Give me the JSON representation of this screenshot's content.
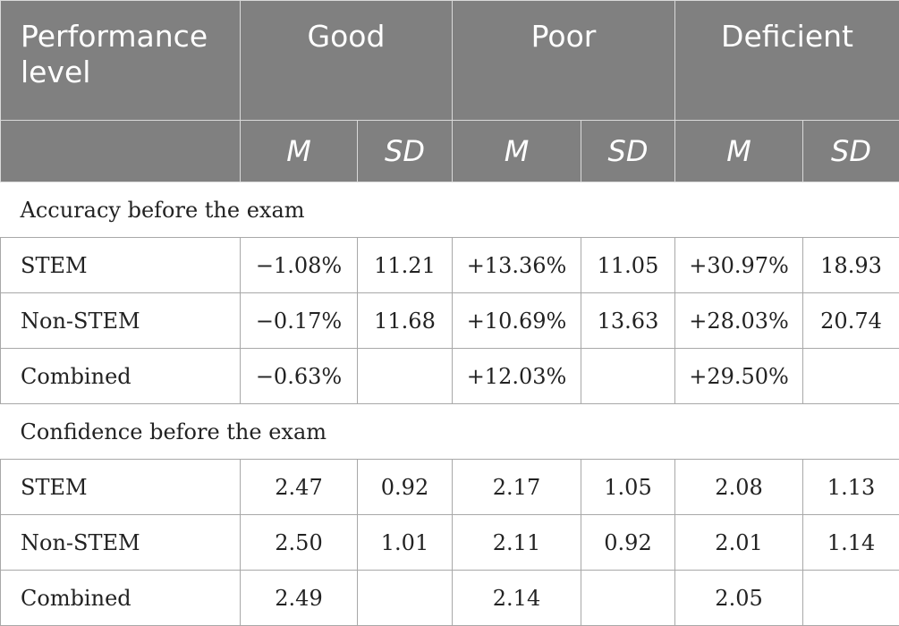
{
  "header": {
    "performance_level": "Performance level",
    "groups": [
      "Good",
      "Poor",
      "Deficient"
    ],
    "subheads": [
      "M",
      "SD",
      "M",
      "SD",
      "M",
      "SD"
    ]
  },
  "sections": [
    {
      "title": "Accuracy before the exam",
      "rows": [
        {
          "label": "STEM",
          "values": [
            "−1.08%",
            "11.21",
            "+13.36%",
            "11.05",
            "+30.97%",
            "18.93"
          ]
        },
        {
          "label": "Non-STEM",
          "values": [
            "−0.17%",
            "11.68",
            "+10.69%",
            "13.63",
            "+28.03%",
            "20.74"
          ]
        },
        {
          "label": "Combined",
          "values": [
            "−0.63%",
            "",
            "+12.03%",
            "",
            "+29.50%",
            ""
          ]
        }
      ]
    },
    {
      "title": "Confidence before the exam",
      "rows": [
        {
          "label": "STEM",
          "values": [
            "2.47",
            "0.92",
            "2.17",
            "1.05",
            "2.08",
            "1.13"
          ]
        },
        {
          "label": "Non-STEM",
          "values": [
            "2.50",
            "1.01",
            "2.11",
            "0.92",
            "2.01",
            "1.14"
          ]
        },
        {
          "label": "Combined",
          "values": [
            "2.49",
            "",
            "2.14",
            "",
            "2.05",
            ""
          ]
        }
      ]
    }
  ]
}
